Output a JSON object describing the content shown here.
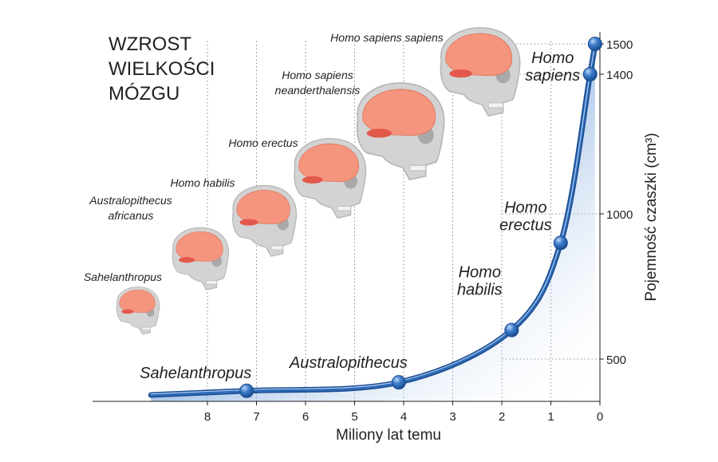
{
  "title": [
    "WZROST",
    "WIELKOŚCI",
    "MÓZGU"
  ],
  "colors": {
    "curve": "#2e6bb5",
    "fill": "#3e7cc8",
    "point": "#3d7dcc",
    "brain": "#f6957e",
    "skull": "#d3d3d3",
    "grid": "#8a8a8a"
  },
  "chart_data": {
    "type": "line",
    "title": "WZROST WIELKOŚCI MÓZGU",
    "xlabel": "Miliony lat temu",
    "ylabel": "Pojemność czaszki (cm³)",
    "x_reversed": true,
    "xlim": [
      9.2,
      0
    ],
    "ylim": [
      300,
      1600
    ],
    "xticks": [
      8,
      7,
      6,
      5,
      4,
      3,
      2,
      1,
      0
    ],
    "yticks": [
      500,
      1000,
      1400,
      1500
    ],
    "grid": true,
    "series": [
      {
        "points": [
          {
            "x": 7.2,
            "y": 350,
            "label": [
              "Sahelanthropus"
            ]
          },
          {
            "x": 4.1,
            "y": 390,
            "label": [
              "Australopithecus"
            ]
          },
          {
            "x": 1.8,
            "y": 600,
            "label": [
              "Homo",
              "habilis"
            ]
          },
          {
            "x": 0.8,
            "y": 900,
            "label": [
              "Homo",
              "erectus"
            ]
          },
          {
            "x": 0.2,
            "y": 1400,
            "label": [
              "Homo",
              "sapiens"
            ]
          },
          {
            "x": 0.1,
            "y": 1500,
            "label": []
          }
        ]
      }
    ],
    "annotations": [
      {
        "species": [
          "Sahelanthropus"
        ]
      },
      {
        "species": [
          "Australopithecus",
          "africanus"
        ]
      },
      {
        "species": [
          "Homo habilis"
        ]
      },
      {
        "species": [
          "Homo erectus"
        ]
      },
      {
        "species": [
          "Homo sapiens",
          "neanderthalensis"
        ]
      },
      {
        "species": [
          "Homo sapiens sapiens"
        ]
      }
    ]
  }
}
